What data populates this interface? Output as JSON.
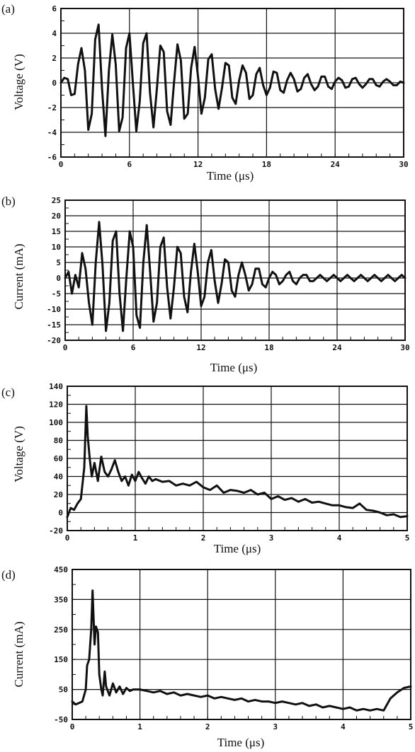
{
  "chart_data": [
    {
      "panel": "(a)",
      "type": "line",
      "xlabel": "Time (μs)",
      "ylabel": "Voltage (V)",
      "xlim": [
        0,
        30
      ],
      "ylim": [
        -6,
        6
      ],
      "xticks": [
        "0",
        "6",
        "12",
        "18",
        "24",
        "30"
      ],
      "yticks": [
        "-6",
        "-4",
        "-2",
        "0",
        "2",
        "4",
        "6"
      ],
      "grid": true,
      "series": [
        {
          "x": [
            0,
            0.3,
            0.6,
            0.9,
            1.2,
            1.5,
            1.8,
            2.1,
            2.4,
            2.7,
            3.0,
            3.3,
            3.6,
            3.9,
            4.2,
            4.5,
            4.8,
            5.1,
            5.4,
            5.7,
            6.0,
            6.3,
            6.6,
            6.9,
            7.2,
            7.5,
            7.8,
            8.1,
            8.4,
            8.7,
            9.0,
            9.3,
            9.6,
            9.9,
            10.2,
            10.5,
            10.8,
            11.1,
            11.4,
            11.7,
            12.0,
            12.3,
            12.6,
            12.9,
            13.2,
            13.5,
            13.8,
            14.1,
            14.4,
            14.7,
            15.0,
            15.3,
            15.6,
            15.9,
            16.2,
            16.5,
            16.8,
            17.1,
            17.4,
            17.7,
            18.0,
            18.3,
            18.6,
            18.9,
            19.2,
            19.5,
            19.8,
            20.1,
            20.4,
            20.7,
            21.0,
            21.3,
            21.6,
            21.9,
            22.2,
            22.5,
            22.8,
            23.1,
            23.4,
            23.7,
            24.0,
            24.3,
            24.6,
            24.9,
            25.2,
            25.5,
            25.8,
            26.1,
            26.4,
            26.7,
            27.0,
            27.3,
            27.6,
            27.9,
            28.2,
            28.5,
            28.8,
            29.1,
            29.4,
            29.7,
            30.0
          ],
          "y": [
            0,
            0.4,
            0.3,
            -1.0,
            -0.9,
            1.5,
            2.8,
            1.0,
            -3.8,
            -2.5,
            3.5,
            4.7,
            -0.5,
            -4.3,
            1.0,
            3.9,
            1.5,
            -3.9,
            -2.8,
            2.8,
            4.0,
            0.0,
            -3.9,
            -1.5,
            3.2,
            4.0,
            -0.8,
            -3.6,
            -0.5,
            3.0,
            2.5,
            -2.3,
            -3.4,
            0.0,
            3.1,
            1.8,
            -2.9,
            -2.5,
            1.2,
            2.9,
            0.5,
            -2.5,
            -1.2,
            1.9,
            2.3,
            -0.5,
            -2.1,
            -0.4,
            1.6,
            1.4,
            -1.2,
            -1.7,
            0.2,
            1.4,
            0.8,
            -1.3,
            -1.0,
            0.7,
            1.2,
            -0.2,
            -1.0,
            -0.4,
            0.9,
            0.8,
            -0.6,
            -0.8,
            0.2,
            0.8,
            0.3,
            -0.7,
            -0.5,
            0.4,
            0.7,
            -0.1,
            -0.6,
            -0.3,
            0.5,
            0.5,
            -0.3,
            -0.5,
            0.1,
            0.4,
            0.2,
            -0.4,
            -0.3,
            0.3,
            0.4,
            -0.1,
            -0.4,
            -0.1,
            0.3,
            0.3,
            -0.2,
            -0.3,
            0.1,
            0.3,
            0.1,
            -0.2,
            -0.2,
            0.1,
            0.0
          ]
        }
      ]
    },
    {
      "panel": "(b)",
      "type": "line",
      "xlabel": "Time (μs)",
      "ylabel": "Current (mA)",
      "xlim": [
        0,
        30
      ],
      "ylim": [
        -20,
        25
      ],
      "xticks": [
        "0",
        "6",
        "12",
        "18",
        "24",
        "30"
      ],
      "yticks": [
        "-20",
        "-15",
        "-10",
        "-5",
        "0",
        "5",
        "10",
        "15",
        "20",
        "25"
      ],
      "grid": true,
      "series": [
        {
          "x": [
            0,
            0.3,
            0.6,
            0.9,
            1.2,
            1.5,
            1.8,
            2.1,
            2.4,
            2.7,
            3.0,
            3.3,
            3.6,
            3.9,
            4.2,
            4.5,
            4.8,
            5.1,
            5.4,
            5.7,
            6.0,
            6.3,
            6.6,
            6.9,
            7.2,
            7.5,
            7.8,
            8.1,
            8.4,
            8.7,
            9.0,
            9.3,
            9.6,
            9.9,
            10.2,
            10.5,
            10.8,
            11.1,
            11.4,
            11.7,
            12.0,
            12.3,
            12.6,
            12.9,
            13.2,
            13.5,
            13.8,
            14.1,
            14.4,
            14.7,
            15.0,
            15.3,
            15.6,
            15.9,
            16.2,
            16.5,
            16.8,
            17.1,
            17.4,
            17.7,
            18.0,
            18.3,
            18.6,
            18.9,
            19.2,
            19.5,
            19.8,
            20.1,
            20.4,
            20.7,
            21.0,
            21.3,
            21.6,
            21.9,
            22.2,
            22.5,
            22.8,
            23.1,
            23.4,
            23.7,
            24.0,
            24.3,
            24.6,
            24.9,
            25.2,
            25.5,
            25.8,
            26.1,
            26.4,
            26.7,
            27.0,
            27.3,
            27.6,
            27.9,
            28.2,
            28.5,
            28.8,
            29.1,
            29.4,
            29.7,
            30.0
          ],
          "y": [
            0,
            2,
            -5,
            1,
            -3,
            8,
            3,
            -8,
            -15,
            5,
            18,
            4,
            -17,
            -8,
            12,
            15,
            -5,
            -17,
            0,
            15,
            10,
            -12,
            -16,
            5,
            17,
            2,
            -14,
            -8,
            10,
            13,
            -3,
            -13,
            -3,
            10,
            8,
            -6,
            -11,
            2,
            11,
            2,
            -9,
            -6,
            5,
            9,
            -1,
            -8,
            -2,
            6,
            5,
            -4,
            -6,
            1,
            5,
            1,
            -4,
            -2,
            3,
            3,
            -2,
            -3,
            0,
            2,
            1,
            -2,
            -1,
            1,
            2,
            -1,
            -2,
            0,
            1,
            1,
            -1,
            -1,
            0,
            1,
            0,
            -1,
            0,
            1,
            0,
            -1,
            0,
            1,
            0,
            -1,
            0,
            1,
            0,
            -1,
            0,
            1,
            0,
            -1,
            0,
            1,
            0,
            -1,
            0,
            1,
            0
          ]
        }
      ]
    },
    {
      "panel": "(c)",
      "type": "line",
      "xlabel": "Time (μs)",
      "ylabel": "Voltage (V)",
      "xlim": [
        0,
        5
      ],
      "ylim": [
        -20,
        140
      ],
      "xticks": [
        "0",
        "1",
        "2",
        "3",
        "4",
        "5"
      ],
      "yticks": [
        "-20",
        "0",
        "20",
        "40",
        "60",
        "80",
        "100",
        "120",
        "140"
      ],
      "grid": true,
      "series": [
        {
          "x": [
            0,
            0.05,
            0.1,
            0.15,
            0.2,
            0.25,
            0.28,
            0.3,
            0.33,
            0.36,
            0.4,
            0.45,
            0.5,
            0.55,
            0.6,
            0.65,
            0.7,
            0.75,
            0.8,
            0.85,
            0.9,
            0.95,
            1.0,
            1.05,
            1.1,
            1.15,
            1.2,
            1.25,
            1.3,
            1.4,
            1.5,
            1.6,
            1.7,
            1.8,
            1.9,
            2.0,
            2.1,
            2.2,
            2.3,
            2.4,
            2.5,
            2.6,
            2.7,
            2.8,
            2.9,
            3.0,
            3.1,
            3.2,
            3.3,
            3.4,
            3.5,
            3.6,
            3.7,
            3.8,
            3.9,
            4.0,
            4.1,
            4.2,
            4.3,
            4.4,
            4.5,
            4.6,
            4.7,
            4.8,
            4.9,
            5.0
          ],
          "y": [
            -5,
            5,
            3,
            10,
            15,
            50,
            118,
            85,
            60,
            40,
            55,
            35,
            62,
            45,
            40,
            48,
            58,
            45,
            35,
            40,
            30,
            42,
            35,
            45,
            38,
            32,
            40,
            35,
            37,
            34,
            35,
            30,
            32,
            30,
            34,
            28,
            25,
            30,
            22,
            25,
            24,
            22,
            25,
            20,
            22,
            15,
            18,
            14,
            16,
            12,
            15,
            11,
            12,
            10,
            8,
            8,
            6,
            5,
            10,
            3,
            2,
            0,
            -3,
            -2,
            -5,
            -4
          ]
        }
      ]
    },
    {
      "panel": "(d)",
      "type": "line",
      "xlabel": "Time (μs)",
      "ylabel": "Current (mA)",
      "xlim": [
        0,
        5
      ],
      "ylim": [
        -50,
        450
      ],
      "xticks": [
        "0",
        "1",
        "2",
        "3",
        "4",
        "5"
      ],
      "yticks": [
        "-50",
        "50",
        "150",
        "250",
        "350",
        "450"
      ],
      "grid": true,
      "series": [
        {
          "x": [
            0,
            0.05,
            0.1,
            0.15,
            0.2,
            0.22,
            0.25,
            0.28,
            0.3,
            0.33,
            0.35,
            0.38,
            0.4,
            0.43,
            0.45,
            0.48,
            0.5,
            0.55,
            0.6,
            0.65,
            0.7,
            0.75,
            0.8,
            0.85,
            0.9,
            1.0,
            1.1,
            1.2,
            1.3,
            1.4,
            1.5,
            1.6,
            1.7,
            1.8,
            1.9,
            2.0,
            2.1,
            2.2,
            2.3,
            2.4,
            2.5,
            2.6,
            2.7,
            2.8,
            2.9,
            3.0,
            3.1,
            3.2,
            3.3,
            3.4,
            3.5,
            3.6,
            3.7,
            3.8,
            3.9,
            4.0,
            4.1,
            4.2,
            4.3,
            4.4,
            4.5,
            4.6,
            4.65,
            4.7,
            4.8,
            4.9,
            5.0
          ],
          "y": [
            10,
            0,
            5,
            10,
            50,
            130,
            150,
            250,
            380,
            200,
            260,
            240,
            100,
            50,
            30,
            110,
            60,
            30,
            70,
            40,
            60,
            35,
            55,
            45,
            50,
            50,
            45,
            40,
            45,
            35,
            40,
            30,
            35,
            30,
            25,
            30,
            20,
            25,
            20,
            15,
            20,
            10,
            15,
            10,
            10,
            5,
            10,
            5,
            0,
            5,
            -5,
            0,
            -10,
            -5,
            -10,
            -15,
            -10,
            -20,
            -15,
            -20,
            -15,
            -20,
            0,
            20,
            40,
            55,
            60
          ]
        }
      ]
    }
  ]
}
